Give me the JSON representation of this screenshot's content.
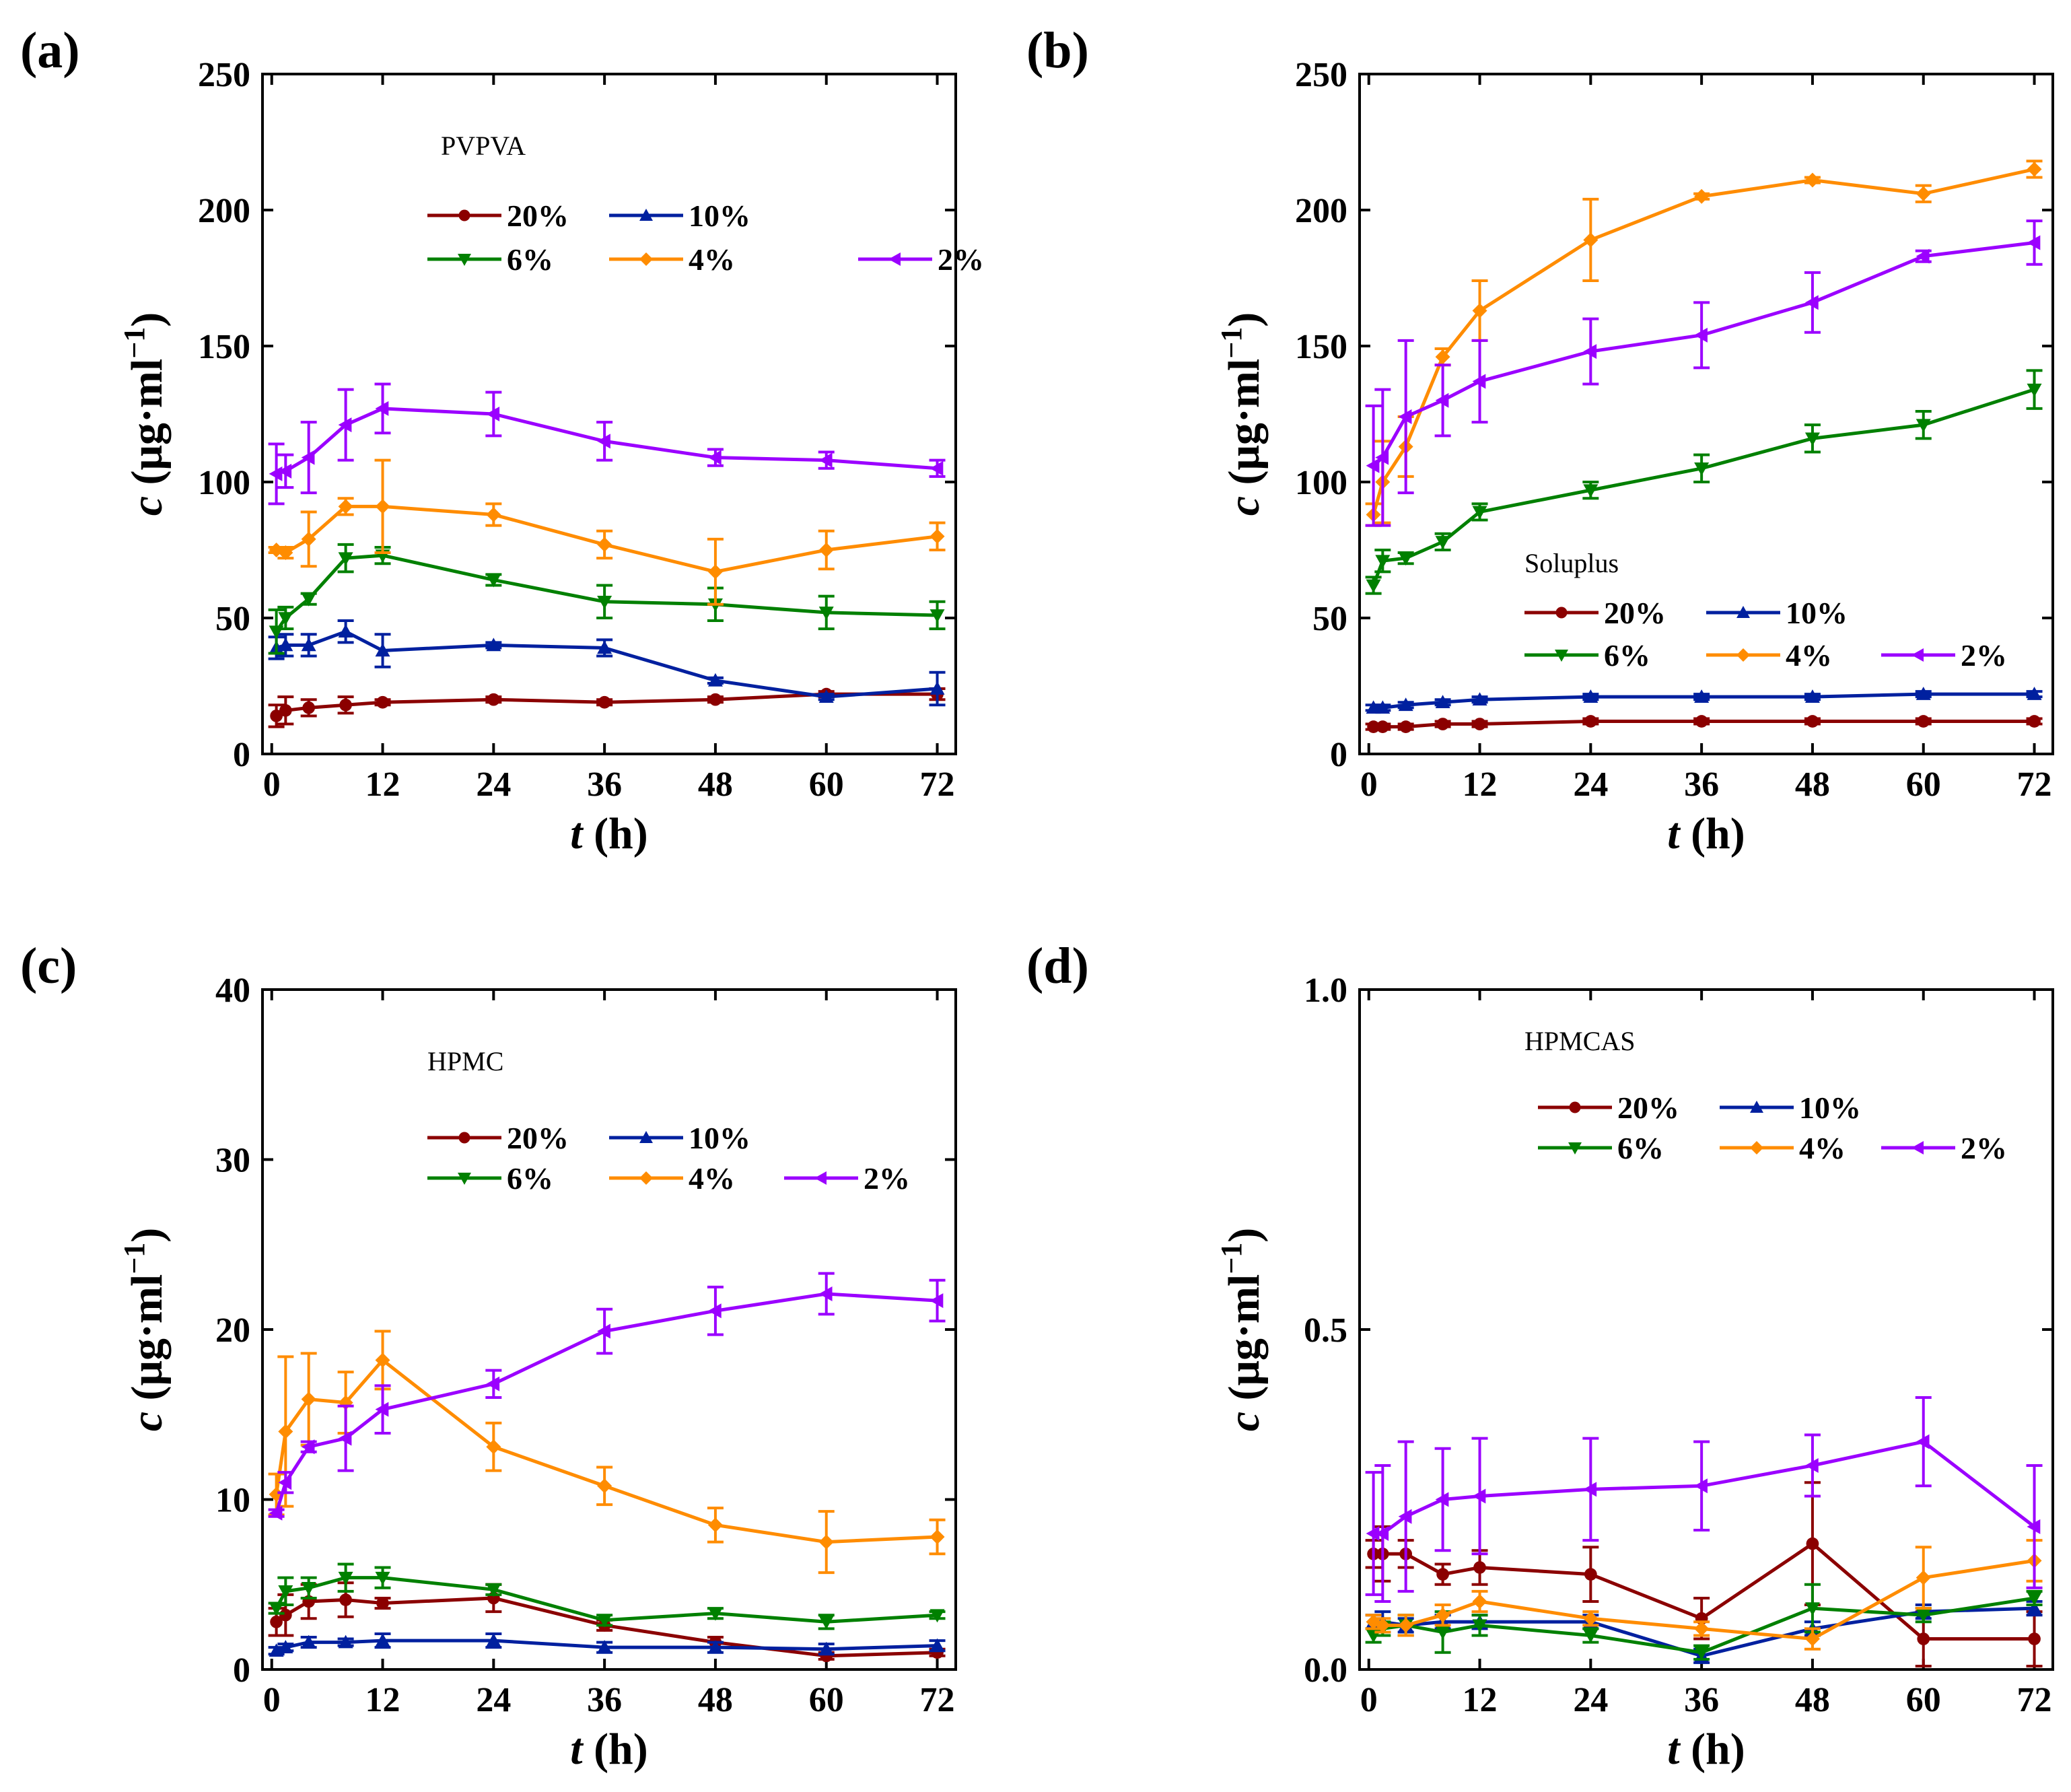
{
  "chart_data": [
    {
      "type": "line",
      "panel_label": "(a)",
      "annotation": "PVPVA",
      "xlabel_var": "t",
      "xlabel_unit": "(h)",
      "ylabel_var": "c",
      "ylabel_unit": "(μg·ml",
      "ylabel_sup": "−1",
      "ylabel_close": ")",
      "xlim": [
        -1,
        74
      ],
      "ylim": [
        0,
        250
      ],
      "xticks": [
        "0",
        "12",
        "24",
        "36",
        "48",
        "60",
        "72"
      ],
      "yticks": [
        "0",
        "50",
        "100",
        "150",
        "200",
        "250"
      ],
      "ytick_values": [
        0,
        50,
        100,
        150,
        200,
        250
      ],
      "x": [
        0.5,
        1.5,
        4,
        8,
        12,
        24,
        36,
        48,
        60,
        72
      ],
      "series": [
        {
          "name": "20%",
          "color": "#8B0000",
          "marker": "circle",
          "values": [
            14,
            16,
            17,
            18,
            19,
            20,
            19,
            20,
            22,
            22
          ],
          "errors": [
            4,
            5,
            3,
            3,
            1,
            1,
            1,
            1,
            1,
            2
          ]
        },
        {
          "name": "10%",
          "color": "#00209F",
          "marker": "triangle-up",
          "values": [
            39,
            40,
            40,
            45,
            38,
            40,
            39,
            27,
            21,
            24
          ],
          "errors": [
            4,
            4,
            4,
            4,
            6,
            1,
            3,
            1,
            1,
            6
          ]
        },
        {
          "name": "6%",
          "color": "#008000",
          "marker": "triangle-down",
          "values": [
            45,
            50,
            57,
            72,
            73,
            64,
            56,
            55,
            52,
            51
          ],
          "errors": [
            8,
            4,
            2,
            5,
            3,
            2,
            6,
            6,
            6,
            5
          ]
        },
        {
          "name": "4%",
          "color": "#FF8C00",
          "marker": "diamond",
          "values": [
            75,
            74,
            79,
            91,
            91,
            88,
            77,
            67,
            75,
            80
          ],
          "errors": [
            1,
            2,
            10,
            3,
            17,
            4,
            5,
            12,
            7,
            5
          ]
        },
        {
          "name": "2%",
          "color": "#9B00FF",
          "marker": "triangle-left",
          "values": [
            103,
            104,
            109,
            121,
            127,
            125,
            115,
            109,
            108,
            105
          ],
          "errors": [
            11,
            6,
            13,
            13,
            9,
            8,
            7,
            3,
            3,
            3
          ]
        }
      ]
    },
    {
      "type": "line",
      "panel_label": "(b)",
      "annotation": "Soluplus",
      "xlabel_var": "t",
      "xlabel_unit": "(h)",
      "ylabel_var": "c",
      "ylabel_unit": "(μg·ml",
      "ylabel_sup": "−1",
      "ylabel_close": ")",
      "xlim": [
        -1,
        74
      ],
      "ylim": [
        0,
        250
      ],
      "xticks": [
        "0",
        "12",
        "24",
        "36",
        "48",
        "60",
        "72"
      ],
      "yticks": [
        "0",
        "50",
        "100",
        "150",
        "200",
        "250"
      ],
      "ytick_values": [
        0,
        50,
        100,
        150,
        200,
        250
      ],
      "x": [
        0.5,
        1.5,
        4,
        8,
        12,
        24,
        36,
        48,
        60,
        72
      ],
      "series": [
        {
          "name": "20%",
          "color": "#8B0000",
          "marker": "circle",
          "values": [
            10,
            10,
            10,
            11,
            11,
            12,
            12,
            12,
            12,
            12
          ],
          "errors": [
            1,
            1,
            1,
            1,
            1,
            1,
            1,
            1,
            1,
            1
          ]
        },
        {
          "name": "10%",
          "color": "#00209F",
          "marker": "triangle-up",
          "values": [
            17,
            17,
            18,
            19,
            20,
            21,
            21,
            21,
            22,
            22
          ],
          "errors": [
            1,
            1,
            1,
            1,
            1,
            1,
            1,
            1,
            1,
            1
          ]
        },
        {
          "name": "6%",
          "color": "#008000",
          "marker": "triangle-down",
          "values": [
            62,
            71,
            72,
            78,
            89,
            97,
            105,
            116,
            121,
            134
          ],
          "errors": [
            3,
            4,
            2,
            3,
            3,
            3,
            5,
            5,
            5,
            7
          ]
        },
        {
          "name": "4%",
          "color": "#FF8C00",
          "marker": "diamond",
          "values": [
            88,
            100,
            113,
            146,
            163,
            189,
            205,
            211,
            206,
            215
          ],
          "errors": [
            4,
            15,
            11,
            3,
            11,
            15,
            1,
            1,
            3,
            3
          ]
        },
        {
          "name": "2%",
          "color": "#9B00FF",
          "marker": "triangle-left",
          "values": [
            106,
            109,
            124,
            130,
            137,
            148,
            154,
            166,
            183,
            188
          ],
          "errors": [
            22,
            25,
            28,
            13,
            15,
            12,
            12,
            11,
            2,
            8
          ]
        }
      ]
    },
    {
      "type": "line",
      "panel_label": "(c)",
      "annotation": "HPMC",
      "xlabel_var": "t",
      "xlabel_unit": "(h)",
      "ylabel_var": "c",
      "ylabel_unit": "(μg·ml",
      "ylabel_sup": "−1",
      "ylabel_close": ")",
      "xlim": [
        -1,
        74
      ],
      "ylim": [
        0,
        40
      ],
      "xticks": [
        "0",
        "12",
        "24",
        "36",
        "48",
        "60",
        "72"
      ],
      "yticks": [
        "0",
        "10",
        "20",
        "30",
        "40"
      ],
      "ytick_values": [
        0,
        10,
        20,
        30,
        40
      ],
      "x": [
        0.5,
        1.5,
        4,
        8,
        12,
        24,
        36,
        48,
        60,
        72
      ],
      "series": [
        {
          "name": "20%",
          "color": "#8B0000",
          "marker": "circle",
          "values": [
            2.8,
            3.2,
            4.0,
            4.1,
            3.9,
            4.2,
            2.6,
            1.6,
            0.8,
            1.0
          ],
          "errors": [
            0.8,
            1.2,
            1.0,
            1.0,
            0.3,
            0.8,
            0.3,
            0.3,
            0.2,
            0.2
          ]
        },
        {
          "name": "10%",
          "color": "#00209F",
          "marker": "triangle-up",
          "values": [
            1.1,
            1.3,
            1.6,
            1.6,
            1.7,
            1.7,
            1.3,
            1.3,
            1.2,
            1.4
          ],
          "errors": [
            0.2,
            0.2,
            0.3,
            0.2,
            0.4,
            0.4,
            0.3,
            0.3,
            0.3,
            0.3
          ]
        },
        {
          "name": "6%",
          "color": "#008000",
          "marker": "triangle-down",
          "values": [
            3.6,
            4.6,
            4.8,
            5.4,
            5.4,
            4.7,
            2.9,
            3.3,
            2.8,
            3.2
          ],
          "errors": [
            0.3,
            0.8,
            0.6,
            0.8,
            0.6,
            0.3,
            0.3,
            0.3,
            0.4,
            0.2
          ]
        },
        {
          "name": "4%",
          "color": "#FF8C00",
          "marker": "diamond",
          "values": [
            10.3,
            14.0,
            15.9,
            15.7,
            18.2,
            13.1,
            10.8,
            8.5,
            7.5,
            7.8
          ],
          "errors": [
            1.2,
            4.4,
            2.7,
            1.8,
            1.7,
            1.4,
            1.1,
            1.0,
            1.8,
            1.0
          ]
        },
        {
          "name": "2%",
          "color": "#9B00FF",
          "marker": "triangle-left",
          "values": [
            9.2,
            11.0,
            13.1,
            13.6,
            15.3,
            16.8,
            19.9,
            21.1,
            22.1,
            21.7
          ],
          "errors": [
            0.2,
            0.6,
            0.3,
            1.9,
            1.4,
            0.8,
            1.3,
            1.4,
            1.2,
            1.2
          ]
        }
      ]
    },
    {
      "type": "line",
      "panel_label": "(d)",
      "annotation": "HPMCAS",
      "xlabel_var": "t",
      "xlabel_unit": "(h)",
      "ylabel_var": "c",
      "ylabel_unit": "(μg·ml",
      "ylabel_sup": "−1",
      "ylabel_close": ")",
      "xlim": [
        -1,
        74
      ],
      "ylim": [
        0,
        1.0
      ],
      "xticks": [
        "0",
        "12",
        "24",
        "36",
        "48",
        "60",
        "72"
      ],
      "yticks": [
        "0.0",
        "0.5",
        "1.0"
      ],
      "ytick_values": [
        0,
        0.5,
        1.0
      ],
      "x": [
        0.5,
        1.5,
        4,
        8,
        12,
        24,
        36,
        48,
        60,
        72
      ],
      "series": [
        {
          "name": "20%",
          "color": "#8B0000",
          "marker": "circle",
          "values": [
            0.17,
            0.17,
            0.17,
            0.14,
            0.15,
            0.14,
            0.075,
            0.185,
            0.045,
            0.045
          ],
          "errors": [
            0.02,
            0.04,
            0.02,
            0.015,
            0.025,
            0.04,
            0.03,
            0.09,
            0.04,
            0.04
          ]
        },
        {
          "name": "10%",
          "color": "#00209F",
          "marker": "triangle-up",
          "values": [
            0.07,
            0.07,
            0.065,
            0.07,
            0.07,
            0.07,
            0.02,
            0.06,
            0.085,
            0.09
          ],
          "errors": [
            0.01,
            0.015,
            0.01,
            0.01,
            0.01,
            0.01,
            0.01,
            0.01,
            0.01,
            0.01
          ]
        },
        {
          "name": "6%",
          "color": "#008000",
          "marker": "triangle-down",
          "values": [
            0.05,
            0.06,
            0.065,
            0.055,
            0.065,
            0.05,
            0.025,
            0.09,
            0.08,
            0.105
          ],
          "errors": [
            0.01,
            0.01,
            0.015,
            0.03,
            0.015,
            0.01,
            0.01,
            0.035,
            0.01,
            0.01
          ]
        },
        {
          "name": "4%",
          "color": "#FF8C00",
          "marker": "diamond",
          "values": [
            0.07,
            0.065,
            0.065,
            0.08,
            0.1,
            0.075,
            0.06,
            0.045,
            0.135,
            0.16
          ],
          "errors": [
            0.01,
            0.01,
            0.015,
            0.015,
            0.015,
            0.01,
            0.01,
            0.015,
            0.045,
            0.03
          ]
        },
        {
          "name": "2%",
          "color": "#9B00FF",
          "marker": "triangle-left",
          "values": [
            0.2,
            0.2,
            0.225,
            0.25,
            0.255,
            0.265,
            0.27,
            0.3,
            0.335,
            0.21
          ],
          "errors": [
            0.09,
            0.1,
            0.11,
            0.075,
            0.085,
            0.075,
            0.065,
            0.045,
            0.065,
            0.09
          ]
        }
      ]
    }
  ]
}
